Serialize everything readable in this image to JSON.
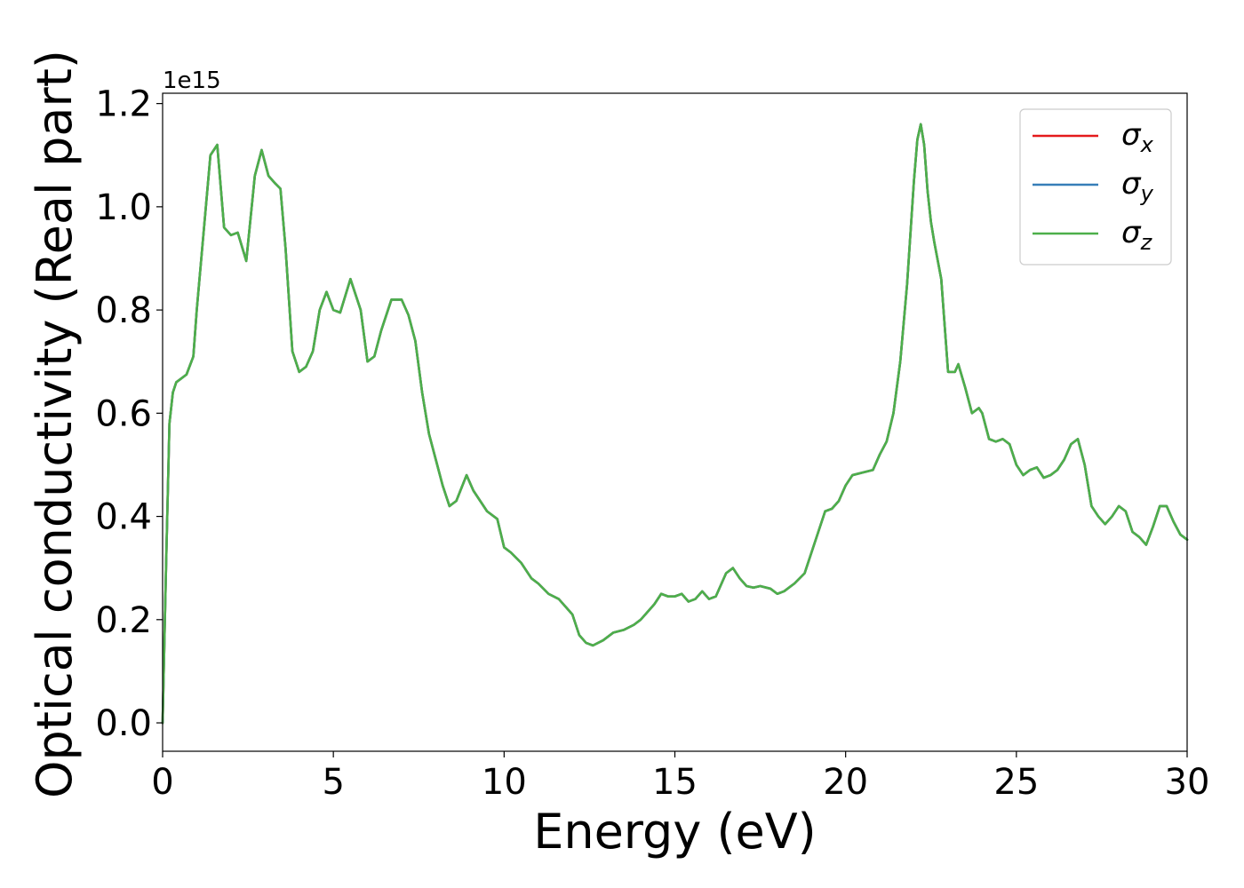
{
  "chart_data": {
    "type": "line",
    "xlabel": "Energy (eV)",
    "ylabel": "Optical conductivity (Real part)",
    "y_offset_label": "1e15",
    "xlim": [
      0,
      30
    ],
    "ylim": [
      -0.055,
      1.22
    ],
    "x_ticks": [
      0,
      5,
      10,
      15,
      20,
      25,
      30
    ],
    "x_tick_labels": [
      "0",
      "5",
      "10",
      "15",
      "20",
      "25",
      "30"
    ],
    "y_ticks": [
      0.0,
      0.2,
      0.4,
      0.6,
      0.8,
      1.0,
      1.2
    ],
    "y_tick_labels": [
      "0.0",
      "0.2",
      "0.4",
      "0.6",
      "0.8",
      "1.0",
      "1.2"
    ],
    "grid": false,
    "legend_position": "top-right",
    "series": [
      {
        "name": "σx",
        "label_base": "σ",
        "label_sub": "x",
        "color": "#e41a1c",
        "x": [
          0,
          0.1,
          0.2,
          0.3,
          0.4,
          0.5,
          0.7,
          0.9,
          1.0,
          1.2,
          1.4,
          1.6,
          1.8,
          2.0,
          2.2,
          2.45,
          2.7,
          2.9,
          3.1,
          3.3,
          3.45,
          3.6,
          3.8,
          4.0,
          4.2,
          4.4,
          4.6,
          4.8,
          5.0,
          5.2,
          5.5,
          5.8,
          6.0,
          6.2,
          6.4,
          6.7,
          7.0,
          7.2,
          7.4,
          7.6,
          7.8,
          8.0,
          8.2,
          8.4,
          8.6,
          8.9,
          9.1,
          9.3,
          9.5,
          9.8,
          10.0,
          10.2,
          10.5,
          10.8,
          11.0,
          11.3,
          11.6,
          11.8,
          12.0,
          12.2,
          12.4,
          12.6,
          12.9,
          13.2,
          13.5,
          13.8,
          14.0,
          14.2,
          14.4,
          14.6,
          14.8,
          15.0,
          15.2,
          15.4,
          15.6,
          15.8,
          16.0,
          16.2,
          16.5,
          16.7,
          16.9,
          17.1,
          17.3,
          17.5,
          17.8,
          18.0,
          18.2,
          18.5,
          18.8,
          19.0,
          19.2,
          19.4,
          19.6,
          19.8,
          20.0,
          20.2,
          20.5,
          20.8,
          21.0,
          21.2,
          21.4,
          21.6,
          21.8,
          22.0,
          22.1,
          22.2,
          22.3,
          22.4,
          22.5,
          22.6,
          22.8,
          23.0,
          23.2,
          23.3,
          23.5,
          23.7,
          23.9,
          24.0,
          24.2,
          24.4,
          24.6,
          24.8,
          25.0,
          25.2,
          25.4,
          25.6,
          25.8,
          26.0,
          26.2,
          26.4,
          26.6,
          26.8,
          27.0,
          27.2,
          27.4,
          27.6,
          27.8,
          28.0,
          28.2,
          28.4,
          28.6,
          28.8,
          29.0,
          29.2,
          29.4,
          29.6,
          29.8,
          30.0
        ],
        "y": [
          0.0,
          0.3,
          0.58,
          0.64,
          0.66,
          0.665,
          0.675,
          0.71,
          0.8,
          0.95,
          1.1,
          1.12,
          0.96,
          0.945,
          0.95,
          0.895,
          1.06,
          1.11,
          1.06,
          1.045,
          1.035,
          0.92,
          0.72,
          0.68,
          0.69,
          0.72,
          0.8,
          0.835,
          0.8,
          0.795,
          0.86,
          0.8,
          0.7,
          0.71,
          0.76,
          0.82,
          0.82,
          0.79,
          0.74,
          0.64,
          0.56,
          0.51,
          0.46,
          0.42,
          0.43,
          0.48,
          0.45,
          0.43,
          0.41,
          0.395,
          0.34,
          0.33,
          0.31,
          0.28,
          0.27,
          0.25,
          0.24,
          0.225,
          0.21,
          0.17,
          0.155,
          0.15,
          0.16,
          0.175,
          0.18,
          0.19,
          0.2,
          0.215,
          0.23,
          0.25,
          0.245,
          0.245,
          0.25,
          0.235,
          0.24,
          0.255,
          0.24,
          0.245,
          0.29,
          0.3,
          0.28,
          0.265,
          0.262,
          0.265,
          0.26,
          0.25,
          0.255,
          0.27,
          0.29,
          0.33,
          0.37,
          0.41,
          0.415,
          0.43,
          0.46,
          0.48,
          0.485,
          0.49,
          0.52,
          0.545,
          0.6,
          0.7,
          0.85,
          1.05,
          1.13,
          1.16,
          1.12,
          1.03,
          0.97,
          0.93,
          0.86,
          0.68,
          0.68,
          0.695,
          0.65,
          0.6,
          0.61,
          0.6,
          0.55,
          0.545,
          0.55,
          0.54,
          0.5,
          0.48,
          0.49,
          0.495,
          0.475,
          0.48,
          0.49,
          0.51,
          0.54,
          0.55,
          0.5,
          0.42,
          0.4,
          0.385,
          0.4,
          0.42,
          0.41,
          0.37,
          0.36,
          0.345,
          0.38,
          0.42,
          0.42,
          0.39,
          0.365,
          0.355
        ]
      },
      {
        "name": "σy",
        "label_base": "σ",
        "label_sub": "y",
        "color": "#377eb8",
        "x": [
          0,
          0.1,
          0.2,
          0.3,
          0.4,
          0.5,
          0.7,
          0.9,
          1.0,
          1.2,
          1.4,
          1.6,
          1.8,
          2.0,
          2.2,
          2.45,
          2.7,
          2.9,
          3.1,
          3.3,
          3.45,
          3.6,
          3.8,
          4.0,
          4.2,
          4.4,
          4.6,
          4.8,
          5.0,
          5.2,
          5.5,
          5.8,
          6.0,
          6.2,
          6.4,
          6.7,
          7.0,
          7.2,
          7.4,
          7.6,
          7.8,
          8.0,
          8.2,
          8.4,
          8.6,
          8.9,
          9.1,
          9.3,
          9.5,
          9.8,
          10.0,
          10.2,
          10.5,
          10.8,
          11.0,
          11.3,
          11.6,
          11.8,
          12.0,
          12.2,
          12.4,
          12.6,
          12.9,
          13.2,
          13.5,
          13.8,
          14.0,
          14.2,
          14.4,
          14.6,
          14.8,
          15.0,
          15.2,
          15.4,
          15.6,
          15.8,
          16.0,
          16.2,
          16.5,
          16.7,
          16.9,
          17.1,
          17.3,
          17.5,
          17.8,
          18.0,
          18.2,
          18.5,
          18.8,
          19.0,
          19.2,
          19.4,
          19.6,
          19.8,
          20.0,
          20.2,
          20.5,
          20.8,
          21.0,
          21.2,
          21.4,
          21.6,
          21.8,
          22.0,
          22.1,
          22.2,
          22.3,
          22.4,
          22.5,
          22.6,
          22.8,
          23.0,
          23.2,
          23.3,
          23.5,
          23.7,
          23.9,
          24.0,
          24.2,
          24.4,
          24.6,
          24.8,
          25.0,
          25.2,
          25.4,
          25.6,
          25.8,
          26.0,
          26.2,
          26.4,
          26.6,
          26.8,
          27.0,
          27.2,
          27.4,
          27.6,
          27.8,
          28.0,
          28.2,
          28.4,
          28.6,
          28.8,
          29.0,
          29.2,
          29.4,
          29.6,
          29.8,
          30.0
        ],
        "y": [
          0.0,
          0.3,
          0.58,
          0.64,
          0.66,
          0.665,
          0.675,
          0.71,
          0.8,
          0.95,
          1.1,
          1.12,
          0.96,
          0.945,
          0.95,
          0.895,
          1.06,
          1.11,
          1.06,
          1.045,
          1.035,
          0.92,
          0.72,
          0.68,
          0.69,
          0.72,
          0.8,
          0.835,
          0.8,
          0.795,
          0.86,
          0.8,
          0.7,
          0.71,
          0.76,
          0.82,
          0.82,
          0.79,
          0.74,
          0.64,
          0.56,
          0.51,
          0.46,
          0.42,
          0.43,
          0.48,
          0.45,
          0.43,
          0.41,
          0.395,
          0.34,
          0.33,
          0.31,
          0.28,
          0.27,
          0.25,
          0.24,
          0.225,
          0.21,
          0.17,
          0.155,
          0.15,
          0.16,
          0.175,
          0.18,
          0.19,
          0.2,
          0.215,
          0.23,
          0.25,
          0.245,
          0.245,
          0.25,
          0.235,
          0.24,
          0.255,
          0.24,
          0.245,
          0.29,
          0.3,
          0.28,
          0.265,
          0.262,
          0.265,
          0.26,
          0.25,
          0.255,
          0.27,
          0.29,
          0.33,
          0.37,
          0.41,
          0.415,
          0.43,
          0.46,
          0.48,
          0.485,
          0.49,
          0.52,
          0.545,
          0.6,
          0.7,
          0.85,
          1.05,
          1.13,
          1.16,
          1.12,
          1.03,
          0.97,
          0.93,
          0.86,
          0.68,
          0.68,
          0.695,
          0.65,
          0.6,
          0.61,
          0.6,
          0.55,
          0.545,
          0.55,
          0.54,
          0.5,
          0.48,
          0.49,
          0.495,
          0.475,
          0.48,
          0.49,
          0.51,
          0.54,
          0.55,
          0.5,
          0.42,
          0.4,
          0.385,
          0.4,
          0.42,
          0.41,
          0.37,
          0.36,
          0.345,
          0.38,
          0.42,
          0.42,
          0.39,
          0.365,
          0.355
        ]
      },
      {
        "name": "σz",
        "label_base": "σ",
        "label_sub": "z",
        "color": "#4daf4a",
        "x": [
          0,
          0.1,
          0.2,
          0.3,
          0.4,
          0.5,
          0.7,
          0.9,
          1.0,
          1.2,
          1.4,
          1.6,
          1.8,
          2.0,
          2.2,
          2.45,
          2.7,
          2.9,
          3.1,
          3.3,
          3.45,
          3.6,
          3.8,
          4.0,
          4.2,
          4.4,
          4.6,
          4.8,
          5.0,
          5.2,
          5.5,
          5.8,
          6.0,
          6.2,
          6.4,
          6.7,
          7.0,
          7.2,
          7.4,
          7.6,
          7.8,
          8.0,
          8.2,
          8.4,
          8.6,
          8.9,
          9.1,
          9.3,
          9.5,
          9.8,
          10.0,
          10.2,
          10.5,
          10.8,
          11.0,
          11.3,
          11.6,
          11.8,
          12.0,
          12.2,
          12.4,
          12.6,
          12.9,
          13.2,
          13.5,
          13.8,
          14.0,
          14.2,
          14.4,
          14.6,
          14.8,
          15.0,
          15.2,
          15.4,
          15.6,
          15.8,
          16.0,
          16.2,
          16.5,
          16.7,
          16.9,
          17.1,
          17.3,
          17.5,
          17.8,
          18.0,
          18.2,
          18.5,
          18.8,
          19.0,
          19.2,
          19.4,
          19.6,
          19.8,
          20.0,
          20.2,
          20.5,
          20.8,
          21.0,
          21.2,
          21.4,
          21.6,
          21.8,
          22.0,
          22.1,
          22.2,
          22.3,
          22.4,
          22.5,
          22.6,
          22.8,
          23.0,
          23.2,
          23.3,
          23.5,
          23.7,
          23.9,
          24.0,
          24.2,
          24.4,
          24.6,
          24.8,
          25.0,
          25.2,
          25.4,
          25.6,
          25.8,
          26.0,
          26.2,
          26.4,
          26.6,
          26.8,
          27.0,
          27.2,
          27.4,
          27.6,
          27.8,
          28.0,
          28.2,
          28.4,
          28.6,
          28.8,
          29.0,
          29.2,
          29.4,
          29.6,
          29.8,
          30.0
        ],
        "y": [
          0.0,
          0.3,
          0.58,
          0.64,
          0.66,
          0.665,
          0.675,
          0.71,
          0.8,
          0.95,
          1.1,
          1.12,
          0.96,
          0.945,
          0.95,
          0.895,
          1.06,
          1.11,
          1.06,
          1.045,
          1.035,
          0.92,
          0.72,
          0.68,
          0.69,
          0.72,
          0.8,
          0.835,
          0.8,
          0.795,
          0.86,
          0.8,
          0.7,
          0.71,
          0.76,
          0.82,
          0.82,
          0.79,
          0.74,
          0.64,
          0.56,
          0.51,
          0.46,
          0.42,
          0.43,
          0.48,
          0.45,
          0.43,
          0.41,
          0.395,
          0.34,
          0.33,
          0.31,
          0.28,
          0.27,
          0.25,
          0.24,
          0.225,
          0.21,
          0.17,
          0.155,
          0.15,
          0.16,
          0.175,
          0.18,
          0.19,
          0.2,
          0.215,
          0.23,
          0.25,
          0.245,
          0.245,
          0.25,
          0.235,
          0.24,
          0.255,
          0.24,
          0.245,
          0.29,
          0.3,
          0.28,
          0.265,
          0.262,
          0.265,
          0.26,
          0.25,
          0.255,
          0.27,
          0.29,
          0.33,
          0.37,
          0.41,
          0.415,
          0.43,
          0.46,
          0.48,
          0.485,
          0.49,
          0.52,
          0.545,
          0.6,
          0.7,
          0.85,
          1.05,
          1.13,
          1.16,
          1.12,
          1.03,
          0.97,
          0.93,
          0.86,
          0.68,
          0.68,
          0.695,
          0.65,
          0.6,
          0.61,
          0.6,
          0.55,
          0.545,
          0.55,
          0.54,
          0.5,
          0.48,
          0.49,
          0.495,
          0.475,
          0.48,
          0.49,
          0.51,
          0.54,
          0.55,
          0.5,
          0.42,
          0.4,
          0.385,
          0.4,
          0.42,
          0.41,
          0.37,
          0.36,
          0.345,
          0.38,
          0.42,
          0.42,
          0.39,
          0.365,
          0.355
        ]
      }
    ]
  }
}
